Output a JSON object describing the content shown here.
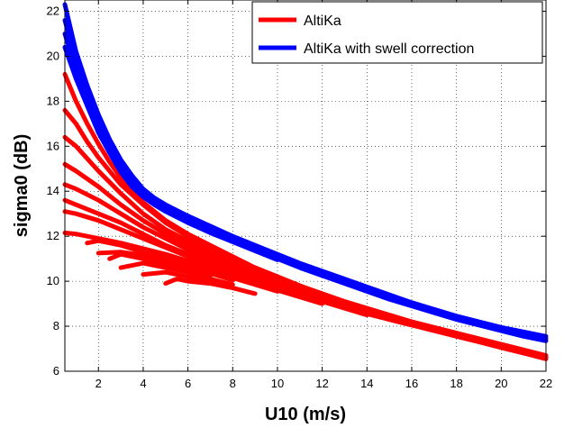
{
  "chart_data": {
    "type": "line",
    "title": "",
    "xlabel": "U10 (m/s)",
    "ylabel": "sigma0 (dB)",
    "xlim": [
      0.5,
      22
    ],
    "ylim": [
      6,
      22.5
    ],
    "xticks": [
      2,
      4,
      6,
      8,
      10,
      12,
      14,
      16,
      18,
      20,
      22
    ],
    "yticks": [
      6,
      8,
      10,
      12,
      14,
      16,
      18,
      20,
      22
    ],
    "grid": true,
    "legend_position": "top-right",
    "series": [
      {
        "name": "AltiKa",
        "color": "#ff0000",
        "bundles": [
          {
            "x": [
              0.5,
              1,
              1.5,
              2,
              2.5,
              3,
              3.5,
              4,
              5,
              6,
              7,
              8,
              9,
              10,
              11,
              12,
              13,
              14,
              15,
              16,
              17,
              18,
              19,
              20,
              21,
              22
            ],
            "y": [
              19.2,
              18.0,
              17.0,
              16.1,
              15.3,
              14.6,
              14.0,
              13.5,
              12.7,
              12.1,
              11.6,
              11.1,
              10.6,
              10.2,
              9.8,
              9.4,
              9.1,
              8.8,
              8.5,
              8.2,
              7.9,
              7.6,
              7.35,
              7.1,
              6.85,
              6.6
            ]
          },
          {
            "x": [
              0.5,
              1,
              1.5,
              2,
              3,
              4,
              5,
              6,
              7,
              8,
              9,
              10,
              11,
              12,
              13,
              14,
              15,
              16,
              17,
              18,
              19,
              20,
              21,
              22
            ],
            "y": [
              17.6,
              17.0,
              16.2,
              15.5,
              14.3,
              13.4,
              12.6,
              12.0,
              11.5,
              11.0,
              10.6,
              10.2,
              9.8,
              9.45,
              9.1,
              8.8,
              8.5,
              8.2,
              7.9,
              7.65,
              7.4,
              7.15,
              6.9,
              6.65
            ]
          },
          {
            "x": [
              0.5,
              1,
              2,
              3,
              4,
              5,
              6,
              7,
              8,
              9,
              10,
              11,
              12,
              13,
              14,
              15,
              16,
              17,
              18,
              19,
              20,
              21,
              22
            ],
            "y": [
              16.4,
              16.0,
              14.9,
              13.9,
              13.0,
              12.3,
              11.8,
              11.3,
              10.9,
              10.5,
              10.1,
              9.75,
              9.4,
              9.05,
              8.75,
              8.45,
              8.15,
              7.9,
              7.6,
              7.35,
              7.1,
              6.85,
              6.6
            ]
          },
          {
            "x": [
              0.5,
              1,
              2,
              3,
              4,
              5,
              6,
              7,
              8,
              9,
              10,
              11,
              12,
              13,
              14,
              15,
              16,
              17,
              18,
              19,
              20
            ],
            "y": [
              15.2,
              14.9,
              14.2,
              13.4,
              12.7,
              12.1,
              11.6,
              11.1,
              10.7,
              10.3,
              9.95,
              9.6,
              9.3,
              9.0,
              8.7,
              8.4,
              8.1,
              7.85,
              7.6,
              7.35,
              7.1
            ]
          },
          {
            "x": [
              0.5,
              1,
              2,
              3,
              4,
              5,
              6,
              7,
              8,
              9,
              10,
              11,
              12,
              13,
              14,
              15,
              16,
              17,
              18
            ],
            "y": [
              14.3,
              14.1,
              13.6,
              13.0,
              12.4,
              11.9,
              11.4,
              11.0,
              10.6,
              10.2,
              9.85,
              9.5,
              9.2,
              8.9,
              8.6,
              8.35,
              8.1,
              7.85,
              7.6
            ]
          },
          {
            "x": [
              0.5,
              1,
              2,
              3,
              4,
              5,
              6,
              7,
              8,
              9,
              10,
              11,
              12,
              13,
              14,
              15,
              16
            ],
            "y": [
              13.6,
              13.4,
              13.0,
              12.6,
              12.1,
              11.6,
              11.2,
              10.8,
              10.45,
              10.1,
              9.75,
              9.45,
              9.15,
              8.85,
              8.55,
              8.3,
              8.05
            ]
          },
          {
            "x": [
              0.5,
              1,
              2,
              3,
              4,
              5,
              6,
              7,
              8,
              9,
              10,
              11,
              12,
              13,
              14
            ],
            "y": [
              13.1,
              13.0,
              12.7,
              12.3,
              11.9,
              11.5,
              11.1,
              10.7,
              10.35,
              10.0,
              9.7,
              9.4,
              9.1,
              8.8,
              8.5
            ]
          },
          {
            "x": [
              0.5,
              1,
              2,
              3,
              4,
              5,
              6,
              7,
              8,
              9,
              10,
              11,
              12
            ],
            "y": [
              12.15,
              12.1,
              11.9,
              11.7,
              11.45,
              11.2,
              10.9,
              10.55,
              10.2,
              9.9,
              9.6,
              9.3,
              9.0
            ]
          },
          {
            "x": [
              1.5,
              2,
              3,
              4,
              5,
              6,
              7,
              8,
              9,
              10
            ],
            "y": [
              11.7,
              11.8,
              11.6,
              11.3,
              11.0,
              10.75,
              10.45,
              10.15,
              9.85,
              9.55
            ]
          },
          {
            "x": [
              2,
              3,
              4,
              5,
              6,
              7,
              8
            ],
            "y": [
              11.25,
              11.3,
              11.15,
              10.9,
              10.6,
              10.35,
              10.05
            ]
          },
          {
            "x": [
              2.5,
              3,
              4,
              5,
              6,
              7
            ],
            "y": [
              11.0,
              11.2,
              11.0,
              10.75,
              10.5,
              10.25
            ]
          },
          {
            "x": [
              3,
              4,
              5,
              6,
              7,
              8
            ],
            "y": [
              10.6,
              10.8,
              10.6,
              10.4,
              10.1,
              9.85
            ]
          },
          {
            "x": [
              4,
              5,
              6,
              7
            ],
            "y": [
              10.3,
              10.4,
              10.2,
              9.95
            ]
          },
          {
            "x": [
              5,
              5.5,
              6,
              7,
              8,
              9
            ],
            "y": [
              9.9,
              10.1,
              10.0,
              9.9,
              9.7,
              9.45
            ]
          },
          {
            "x": [
              6,
              7,
              8,
              9,
              10,
              11,
              12,
              13,
              14,
              15,
              16,
              17,
              18,
              19,
              20,
              21,
              22
            ],
            "y": [
              11.5,
              11.1,
              10.7,
              10.35,
              10.0,
              9.65,
              9.35,
              9.05,
              8.75,
              8.45,
              8.2,
              7.95,
              7.7,
              7.45,
              7.2,
              6.95,
              6.7
            ]
          },
          {
            "x": [
              8,
              9,
              10,
              11,
              12,
              13,
              14,
              15,
              16,
              17,
              18,
              19,
              20,
              21,
              22
            ],
            "y": [
              10.5,
              10.15,
              9.8,
              9.5,
              9.2,
              8.9,
              8.6,
              8.3,
              8.05,
              7.8,
              7.55,
              7.3,
              7.05,
              6.8,
              6.55
            ]
          }
        ]
      },
      {
        "name": "AltiKa with swell correction",
        "color": "#0000ff",
        "bundles": [
          {
            "x": [
              0.5,
              1,
              1.5,
              2,
              2.5,
              3,
              3.5,
              4,
              4.5,
              5,
              6,
              7,
              8,
              9,
              10,
              11,
              12,
              13,
              14,
              15,
              16,
              17,
              18,
              19,
              20,
              21,
              22
            ],
            "y": [
              22.3,
              20.2,
              18.7,
              17.4,
              16.3,
              15.4,
              14.7,
              14.1,
              13.7,
              13.4,
              12.9,
              12.45,
              12.0,
              11.6,
              11.2,
              10.8,
              10.45,
              10.1,
              9.75,
              9.4,
              9.05,
              8.75,
              8.45,
              8.2,
              7.95,
              7.75,
              7.55
            ]
          },
          {
            "x": [
              0.5,
              1,
              1.5,
              2,
              2.5,
              3,
              3.5,
              4,
              4.5,
              5,
              6,
              7,
              8,
              9,
              10,
              11,
              12,
              13,
              14,
              15,
              16,
              17,
              18,
              19,
              20,
              21,
              22
            ],
            "y": [
              21.6,
              19.8,
              18.4,
              17.2,
              16.1,
              15.2,
              14.5,
              14.0,
              13.6,
              13.3,
              12.8,
              12.35,
              11.9,
              11.5,
              11.1,
              10.7,
              10.35,
              10.0,
              9.65,
              9.3,
              9.0,
              8.7,
              8.4,
              8.15,
              7.9,
              7.65,
              7.45
            ]
          },
          {
            "x": [
              0.5,
              1,
              1.5,
              2,
              2.5,
              3,
              3.5,
              4,
              4.5,
              5,
              6,
              7,
              8,
              9,
              10,
              11,
              12,
              13,
              14,
              15,
              16,
              17,
              18,
              19,
              20,
              21,
              22
            ],
            "y": [
              21.0,
              19.4,
              18.1,
              16.9,
              15.9,
              15.0,
              14.35,
              13.85,
              13.45,
              13.15,
              12.7,
              12.25,
              11.8,
              11.4,
              11.0,
              10.6,
              10.25,
              9.9,
              9.55,
              9.2,
              8.9,
              8.6,
              8.3,
              8.05,
              7.8,
              7.55,
              7.35
            ]
          },
          {
            "x": [
              0.5,
              1,
              1.5,
              2,
              2.5,
              3,
              3.5,
              4,
              4.5,
              5,
              6,
              7,
              8,
              9,
              10
            ],
            "y": [
              20.4,
              19.0,
              17.8,
              16.6,
              15.7,
              14.85,
              14.2,
              13.75,
              13.4,
              13.1,
              12.6,
              12.15,
              11.75,
              11.35,
              10.95
            ]
          }
        ]
      }
    ]
  }
}
